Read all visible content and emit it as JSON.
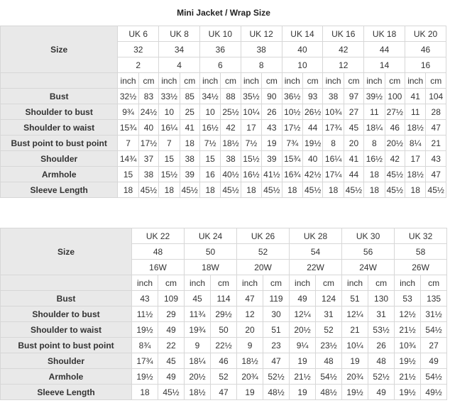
{
  "title": "Mini Jacket / Wrap Size",
  "table1": {
    "size_label": "Size",
    "sizes": [
      "UK 6",
      "UK 8",
      "UK 10",
      "UK 12",
      "UK 14",
      "UK 16",
      "UK 18",
      "UK 20"
    ],
    "eu": [
      "32",
      "34",
      "36",
      "38",
      "40",
      "42",
      "44",
      "46"
    ],
    "us": [
      "2",
      "4",
      "6",
      "8",
      "10",
      "12",
      "14",
      "16"
    ],
    "unit_inch": "inch",
    "unit_cm": "cm",
    "rows": [
      {
        "label": "Bust",
        "cells": [
          "32½",
          "83",
          "33½",
          "85",
          "34½",
          "88",
          "35½",
          "90",
          "36½",
          "93",
          "38",
          "97",
          "39½",
          "100",
          "41",
          "104"
        ]
      },
      {
        "label": "Shoulder to bust",
        "cells": [
          "9¾",
          "24½",
          "10",
          "25",
          "10",
          "25½",
          "10¼",
          "26",
          "10½",
          "26½",
          "10¾",
          "27",
          "11",
          "27½",
          "11",
          "28"
        ]
      },
      {
        "label": "Shoulder to waist",
        "cells": [
          "15¾",
          "40",
          "16¼",
          "41",
          "16½",
          "42",
          "17",
          "43",
          "17½",
          "44",
          "17¾",
          "45",
          "18¼",
          "46",
          "18½",
          "47"
        ]
      },
      {
        "label": "Bust point to bust point",
        "cells": [
          "7",
          "17½",
          "7",
          "18",
          "7½",
          "18½",
          "7½",
          "19",
          "7¾",
          "19½",
          "8",
          "20",
          "8",
          "20½",
          "8¼",
          "21"
        ]
      },
      {
        "label": "Shoulder",
        "cells": [
          "14¾",
          "37",
          "15",
          "38",
          "15",
          "38",
          "15½",
          "39",
          "15¾",
          "40",
          "16¼",
          "41",
          "16½",
          "42",
          "17",
          "43"
        ]
      },
      {
        "label": "Armhole",
        "cells": [
          "15",
          "38",
          "15½",
          "39",
          "16",
          "40½",
          "16½",
          "41½",
          "16¾",
          "42½",
          "17¼",
          "44",
          "18",
          "45½",
          "18½",
          "47"
        ]
      },
      {
        "label": "Sleeve Length",
        "cells": [
          "18",
          "45½",
          "18",
          "45½",
          "18",
          "45½",
          "18",
          "45½",
          "18",
          "45½",
          "18",
          "45½",
          "18",
          "45½",
          "18",
          "45½"
        ]
      }
    ]
  },
  "table2": {
    "size_label": "Size",
    "sizes": [
      "UK 22",
      "UK 24",
      "UK 26",
      "UK 28",
      "UK 30",
      "UK 32"
    ],
    "eu": [
      "48",
      "50",
      "52",
      "54",
      "56",
      "58"
    ],
    "us": [
      "16W",
      "18W",
      "20W",
      "22W",
      "24W",
      "26W"
    ],
    "unit_inch": "inch",
    "unit_cm": "cm",
    "rows": [
      {
        "label": "Bust",
        "cells": [
          "43",
          "109",
          "45",
          "114",
          "47",
          "119",
          "49",
          "124",
          "51",
          "130",
          "53",
          "135"
        ]
      },
      {
        "label": "Shoulder to bust",
        "cells": [
          "11½",
          "29",
          "11¾",
          "29½",
          "12",
          "30",
          "12¼",
          "31",
          "12¼",
          "31",
          "12½",
          "31½"
        ]
      },
      {
        "label": "Shoulder to waist",
        "cells": [
          "19½",
          "49",
          "19¾",
          "50",
          "20",
          "51",
          "20½",
          "52",
          "21",
          "53½",
          "21½",
          "54½"
        ]
      },
      {
        "label": "Bust point to bust point",
        "cells": [
          "8¾",
          "22",
          "9",
          "22½",
          "9",
          "23",
          "9¼",
          "23½",
          "10¼",
          "26",
          "10¾",
          "27"
        ]
      },
      {
        "label": "Shoulder",
        "cells": [
          "17¾",
          "45",
          "18¼",
          "46",
          "18½",
          "47",
          "19",
          "48",
          "19",
          "48",
          "19½",
          "49"
        ]
      },
      {
        "label": "Armhole",
        "cells": [
          "19½",
          "49",
          "20½",
          "52",
          "20¾",
          "52½",
          "21½",
          "54½",
          "20¾",
          "52½",
          "21½",
          "54½"
        ]
      },
      {
        "label": "Sleeve Length",
        "cells": [
          "18",
          "45½",
          "18½",
          "47",
          "19",
          "48½",
          "19",
          "48½",
          "19½",
          "49",
          "19½",
          "49½"
        ]
      }
    ]
  }
}
